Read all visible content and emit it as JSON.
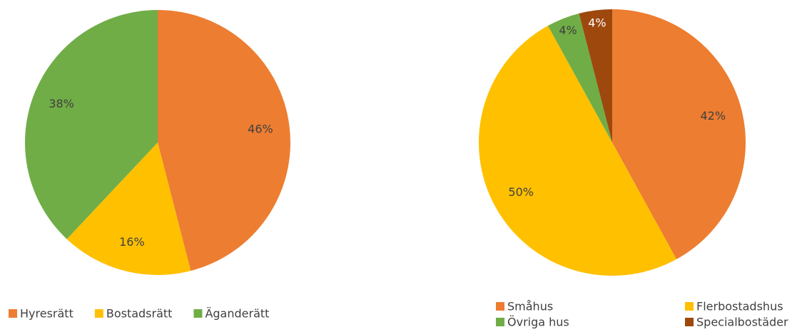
{
  "chart_data": [
    {
      "type": "pie",
      "categories": [
        "Hyresrätt",
        "Bostadsrätt",
        "Äganderätt"
      ],
      "values": [
        46,
        16,
        38
      ],
      "value_labels": [
        "46%",
        "16%",
        "38%"
      ],
      "colors": [
        "#ED7D31",
        "#FFC000",
        "#70AD47"
      ],
      "legend": "bottom"
    },
    {
      "type": "pie",
      "categories": [
        "Småhus",
        "Flerbostadshus",
        "Övriga hus",
        "Specialbostäder"
      ],
      "values": [
        42,
        50,
        4,
        4
      ],
      "value_labels": [
        "42%",
        "50%",
        "4%",
        "4%"
      ],
      "colors": [
        "#ED7D31",
        "#FFC000",
        "#70AD47",
        "#9E480E"
      ],
      "legend": "bottom"
    }
  ]
}
